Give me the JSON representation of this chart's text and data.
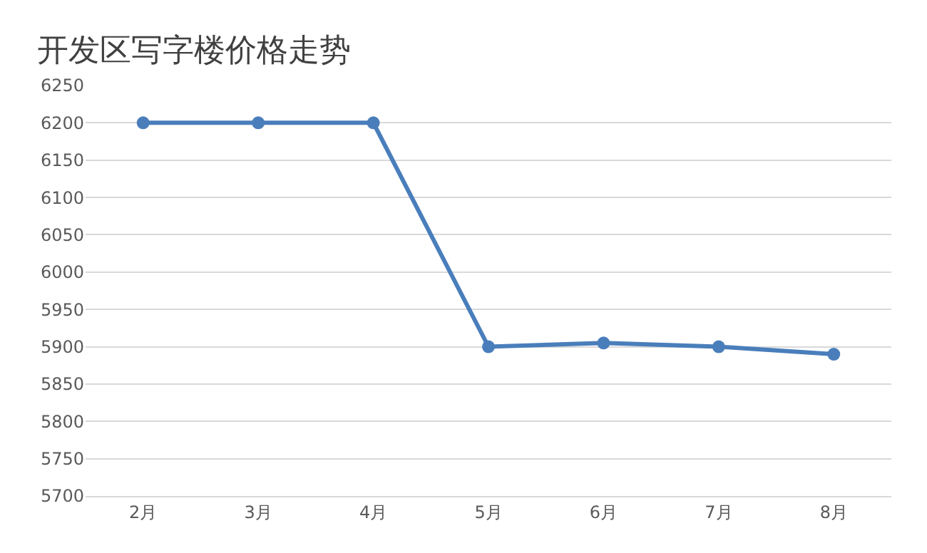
{
  "chart_data": {
    "type": "line",
    "title": "开发区写字楼价格走势",
    "categories": [
      "2月",
      "3月",
      "4月",
      "5月",
      "6月",
      "7月",
      "8月"
    ],
    "series": [
      {
        "color": "#4a7ebb",
        "values": [
          6200,
          6200,
          6200,
          5900,
          5905,
          5900,
          5890
        ]
      }
    ],
    "ylim": [
      5700,
      6250
    ],
    "yticks": [
      5700,
      5750,
      5800,
      5850,
      5900,
      5950,
      6000,
      6050,
      6100,
      6150,
      6200,
      6250
    ],
    "grid": "y",
    "marker": "circle",
    "line_style": "solid"
  }
}
